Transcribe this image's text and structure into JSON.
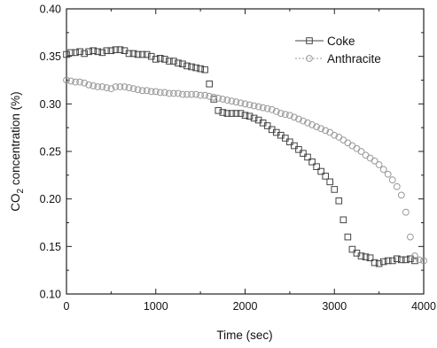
{
  "chart_data": {
    "type": "scatter",
    "xlabel": "Time (sec)",
    "ylabel": {
      "prefix": "CO",
      "sub": "2",
      "suffix": " concentration (%)"
    },
    "xlim": [
      0,
      4000
    ],
    "ylim": [
      0.1,
      0.4
    ],
    "x_ticks": [
      "0",
      "1000",
      "2000",
      "3000",
      "4000"
    ],
    "y_ticks": [
      "0.10",
      "0.15",
      "0.20",
      "0.25",
      "0.30",
      "0.35",
      "0.40"
    ],
    "grid": false,
    "legend_position": "top-right",
    "series": [
      {
        "name": "Coke",
        "marker": "square",
        "color": "#444444",
        "x": [
          0,
          50,
          100,
          150,
          200,
          250,
          300,
          350,
          400,
          450,
          500,
          550,
          600,
          650,
          700,
          750,
          800,
          850,
          900,
          950,
          1000,
          1050,
          1100,
          1150,
          1200,
          1250,
          1300,
          1350,
          1400,
          1450,
          1500,
          1550,
          1600,
          1650,
          1700,
          1750,
          1800,
          1850,
          1900,
          1950,
          2000,
          2050,
          2100,
          2150,
          2200,
          2250,
          2300,
          2350,
          2400,
          2450,
          2500,
          2550,
          2600,
          2650,
          2700,
          2750,
          2800,
          2850,
          2900,
          2950,
          3000,
          3050,
          3100,
          3150,
          3200,
          3250,
          3300,
          3350,
          3400,
          3450,
          3500,
          3550,
          3600,
          3650,
          3700,
          3750,
          3800,
          3850,
          3900
        ],
        "y": [
          0.352,
          0.354,
          0.354,
          0.355,
          0.353,
          0.355,
          0.356,
          0.355,
          0.354,
          0.356,
          0.356,
          0.357,
          0.357,
          0.356,
          0.353,
          0.353,
          0.352,
          0.352,
          0.352,
          0.35,
          0.347,
          0.348,
          0.347,
          0.345,
          0.345,
          0.343,
          0.342,
          0.34,
          0.339,
          0.338,
          0.337,
          0.336,
          0.321,
          0.305,
          0.293,
          0.291,
          0.29,
          0.29,
          0.29,
          0.29,
          0.288,
          0.287,
          0.285,
          0.283,
          0.28,
          0.277,
          0.273,
          0.27,
          0.267,
          0.264,
          0.26,
          0.256,
          0.252,
          0.248,
          0.244,
          0.239,
          0.234,
          0.229,
          0.224,
          0.218,
          0.21,
          0.198,
          0.178,
          0.16,
          0.147,
          0.143,
          0.14,
          0.139,
          0.138,
          0.133,
          0.132,
          0.134,
          0.135,
          0.135,
          0.137,
          0.136,
          0.136,
          0.137,
          0.135
        ]
      },
      {
        "name": "Anthracite",
        "marker": "circle",
        "color": "#999999",
        "x": [
          0,
          50,
          100,
          150,
          200,
          250,
          300,
          350,
          400,
          450,
          500,
          550,
          600,
          650,
          700,
          750,
          800,
          850,
          900,
          950,
          1000,
          1050,
          1100,
          1150,
          1200,
          1250,
          1300,
          1350,
          1400,
          1450,
          1500,
          1550,
          1600,
          1650,
          1700,
          1750,
          1800,
          1850,
          1900,
          1950,
          2000,
          2050,
          2100,
          2150,
          2200,
          2250,
          2300,
          2350,
          2400,
          2450,
          2500,
          2550,
          2600,
          2650,
          2700,
          2750,
          2800,
          2850,
          2900,
          2950,
          3000,
          3050,
          3100,
          3150,
          3200,
          3250,
          3300,
          3350,
          3400,
          3450,
          3500,
          3550,
          3600,
          3650,
          3700,
          3750,
          3800,
          3850,
          3900,
          3950,
          4000
        ],
        "y": [
          0.325,
          0.324,
          0.323,
          0.323,
          0.322,
          0.32,
          0.319,
          0.318,
          0.318,
          0.317,
          0.316,
          0.318,
          0.318,
          0.318,
          0.317,
          0.316,
          0.315,
          0.314,
          0.314,
          0.313,
          0.313,
          0.312,
          0.312,
          0.311,
          0.311,
          0.311,
          0.31,
          0.31,
          0.31,
          0.31,
          0.309,
          0.309,
          0.308,
          0.307,
          0.306,
          0.305,
          0.304,
          0.303,
          0.302,
          0.301,
          0.3,
          0.299,
          0.298,
          0.297,
          0.296,
          0.295,
          0.294,
          0.292,
          0.29,
          0.289,
          0.288,
          0.286,
          0.284,
          0.282,
          0.28,
          0.278,
          0.276,
          0.274,
          0.272,
          0.27,
          0.267,
          0.265,
          0.262,
          0.259,
          0.256,
          0.253,
          0.25,
          0.246,
          0.243,
          0.24,
          0.236,
          0.231,
          0.226,
          0.22,
          0.213,
          0.204,
          0.186,
          0.16,
          0.14,
          0.136,
          0.135
        ]
      }
    ]
  }
}
